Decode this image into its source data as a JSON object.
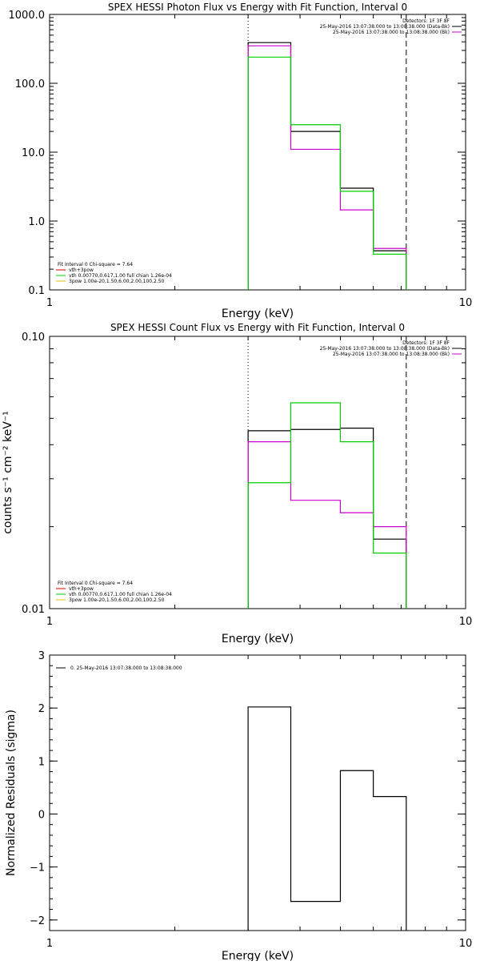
{
  "panels": [
    {
      "key": "photon",
      "title": "SPEX HESSI Photon Flux vs Energy with Fit Function, Interval 0",
      "xlabel": "Energy (keV)",
      "ylabel": "",
      "xscale": "log",
      "yscale": "log",
      "xlim": [
        1,
        10
      ],
      "ylim": [
        0.1,
        1000
      ],
      "xticks": [
        {
          "v": 1,
          "label": "1"
        },
        {
          "v": 10,
          "label": "10"
        }
      ],
      "yticks": [
        {
          "v": 0.1,
          "label": "0.1"
        },
        {
          "v": 1,
          "label": "1.0"
        },
        {
          "v": 10,
          "label": "10.0"
        },
        {
          "v": 100,
          "label": "100.0"
        },
        {
          "v": 1000,
          "label": "1000.0"
        }
      ],
      "vlines": [
        {
          "x": 3.0,
          "style": "dotted"
        },
        {
          "x": 7.2,
          "style": "dashed"
        }
      ],
      "legend_tr": [
        {
          "text": "Detectors: 1F 3F 8F",
          "color": ""
        },
        {
          "text": "25-May-2016 13:07:38.000 to 13:08:38.000 (Data-Bk)",
          "color": "#000000"
        },
        {
          "text": "25-May-2016 13:07:38.000 to 13:08:38.000 (Bk)",
          "color": "#d000d0"
        }
      ],
      "legend_bl": [
        {
          "text": "Fit Interval 0   Chi-square = 7.64",
          "color": ""
        },
        {
          "text": "vth+3pow",
          "color": "#e00000"
        },
        {
          "text": "vth 0.00770,0.617,1.00   full chian 1.26e-04",
          "color": "#00d000"
        },
        {
          "text": "3pow 1.00e-20,1.50,6.00,2.00,100,2.50",
          "color": "#e0c000"
        }
      ],
      "series": [
        {
          "color": "#000000",
          "edges": [
            3.0,
            3.8,
            5.0,
            6.0,
            7.2
          ],
          "values": [
            390,
            20,
            3.0,
            0.37
          ]
        },
        {
          "color": "#d000d0",
          "edges": [
            3.0,
            3.8,
            5.0,
            6.0,
            7.2
          ],
          "values": [
            350,
            11,
            1.45,
            0.4
          ]
        },
        {
          "color": "#00d000",
          "edges": [
            3.0,
            3.8,
            5.0,
            6.0,
            7.2
          ],
          "values": [
            240,
            25,
            2.7,
            0.33
          ]
        }
      ]
    },
    {
      "key": "count",
      "title": "SPEX HESSI Count Flux vs Energy with Fit Function, Interval 0",
      "xlabel": "Energy (keV)",
      "ylabel": "counts s⁻¹ cm⁻² keV⁻¹",
      "xscale": "log",
      "yscale": "log",
      "xlim": [
        1,
        10
      ],
      "ylim": [
        0.01,
        0.1
      ],
      "xticks": [
        {
          "v": 1,
          "label": "1"
        },
        {
          "v": 10,
          "label": "10"
        }
      ],
      "yticks": [
        {
          "v": 0.01,
          "label": "0.01"
        },
        {
          "v": 0.1,
          "label": "0.10"
        }
      ],
      "vlines": [
        {
          "x": 3.0,
          "style": "dotted"
        },
        {
          "x": 7.2,
          "style": "dashed"
        }
      ],
      "legend_tr": [
        {
          "text": "Detectors: 1F 3F 8F",
          "color": ""
        },
        {
          "text": "25-May-2016 13:07:38.000 to 13:08:38.000 (Data-Bk)",
          "color": "#000000"
        },
        {
          "text": "25-May-2016 13:07:38.000 to 13:08:38.000 (Bk)",
          "color": "#d000d0"
        }
      ],
      "legend_bl": [
        {
          "text": "Fit Interval 0   Chi-square = 7.64",
          "color": ""
        },
        {
          "text": "vth+3pow",
          "color": "#e00000"
        },
        {
          "text": "vth 0.00770,0.617,1.00   full chian 1.26e-04",
          "color": "#00d000"
        },
        {
          "text": "3pow 1.00e-20,1.50,6.00,2.00,100,2.50",
          "color": "#e0c000"
        }
      ],
      "series": [
        {
          "color": "#000000",
          "edges": [
            3.0,
            3.8,
            5.0,
            6.0,
            7.2
          ],
          "values": [
            0.045,
            0.0455,
            0.046,
            0.018
          ]
        },
        {
          "color": "#d000d0",
          "edges": [
            3.0,
            3.8,
            5.0,
            6.0,
            7.2
          ],
          "values": [
            0.041,
            0.025,
            0.0225,
            0.02
          ]
        },
        {
          "color": "#00d000",
          "edges": [
            3.0,
            3.8,
            5.0,
            6.0,
            7.2
          ],
          "values": [
            0.029,
            0.057,
            0.041,
            0.016
          ]
        }
      ]
    },
    {
      "key": "resid",
      "title": "",
      "xlabel": "Energy (keV)",
      "ylabel": "Normalized Residuals (sigma)",
      "xscale": "log",
      "yscale": "linear",
      "xlim": [
        1,
        10
      ],
      "ylim": [
        -2.2,
        3
      ],
      "xticks": [
        {
          "v": 1,
          "label": "1"
        },
        {
          "v": 10,
          "label": "10"
        }
      ],
      "yticks": [
        {
          "v": -2,
          "label": "−2"
        },
        {
          "v": -1,
          "label": "−1"
        },
        {
          "v": 0,
          "label": "0"
        },
        {
          "v": 1,
          "label": "1"
        },
        {
          "v": 2,
          "label": "2"
        },
        {
          "v": 3,
          "label": "3"
        }
      ],
      "vlines": [],
      "legend_tr": [],
      "legend_bl": [],
      "legend_tl": [
        {
          "text": "0. 25-May-2016 13:07:38.000 to 13:08:38.000",
          "color": "#000000"
        }
      ],
      "series": [
        {
          "color": "#000000",
          "edges": [
            3.0,
            3.8,
            5.0,
            6.0,
            7.2
          ],
          "values": [
            2.02,
            -1.65,
            0.82,
            0.33
          ],
          "closed": true
        }
      ]
    }
  ]
}
